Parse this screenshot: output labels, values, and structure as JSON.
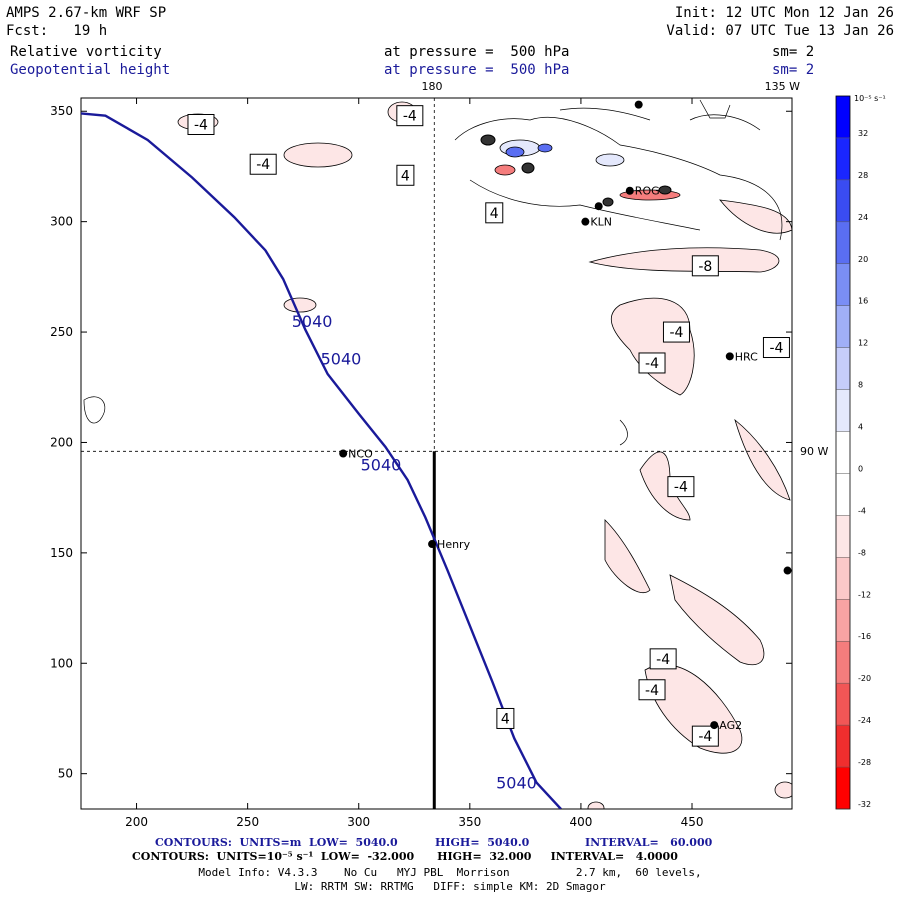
{
  "header": {
    "model": "AMPS 2.67-km WRF SP",
    "fcst": "Fcst:   19 h",
    "init": "Init: 12 UTC Mon 12 Jan 26",
    "valid": "Valid: 07 UTC Tue 13 Jan 26",
    "field1_name": "Relative vorticity",
    "field1_pressure": "at pressure =  500 hPa",
    "field1_sm": "sm= 2",
    "field2_name": "Geopotential height",
    "field2_pressure": "at pressure =  500 hPa",
    "field2_sm": "sm= 2"
  },
  "map_labels": {
    "lon180": "180",
    "lon135w": "135 W",
    "lon90w": "90 W"
  },
  "stations": [
    {
      "name": "NCO",
      "x": 293,
      "y": 195
    },
    {
      "name": "Henry",
      "x": 333,
      "y": 154
    },
    {
      "name": "ROG",
      "x": 422,
      "y": 314
    },
    {
      "name": "KLN",
      "x": 402,
      "y": 300
    },
    {
      "name": "HRC",
      "x": 467,
      "y": 239
    },
    {
      "name": "AG2",
      "x": 460,
      "y": 72
    },
    {
      "name": "",
      "x": 493,
      "y": 142
    },
    {
      "name": "",
      "x": 426,
      "y": 353
    },
    {
      "name": "",
      "x": 408,
      "y": 307
    }
  ],
  "chart_data": {
    "type": "contour",
    "xlim": [
      175,
      495
    ],
    "ylim": [
      34,
      356
    ],
    "x_ticks": [
      200,
      250,
      300,
      350,
      400,
      450
    ],
    "y_ticks": [
      50,
      100,
      150,
      200,
      250,
      300,
      350
    ],
    "grid": false,
    "crosshair": {
      "x": 334,
      "y": 196
    },
    "geopotential_contour": {
      "value": "5040",
      "labels": [
        "5040",
        "5040",
        "5040",
        "5040"
      ],
      "points": [
        [
          175,
          349
        ],
        [
          186,
          348
        ],
        [
          205,
          337
        ],
        [
          225,
          320
        ],
        [
          244,
          302
        ],
        [
          258,
          287
        ],
        [
          266,
          274
        ],
        [
          276,
          251
        ],
        [
          286,
          231
        ],
        [
          300,
          213
        ],
        [
          312,
          198
        ],
        [
          322,
          183
        ],
        [
          330,
          166
        ],
        [
          340,
          142
        ],
        [
          350,
          117
        ],
        [
          360,
          92
        ],
        [
          370,
          66
        ],
        [
          380,
          46
        ],
        [
          391,
          34
        ]
      ]
    },
    "vorticity_labels": [
      {
        "text": "-4",
        "x": 229,
        "y": 344
      },
      {
        "text": "-4",
        "x": 257,
        "y": 326
      },
      {
        "text": "-4",
        "x": 323,
        "y": 348
      },
      {
        "text": "4",
        "x": 321,
        "y": 321
      },
      {
        "text": "4",
        "x": 361,
        "y": 304
      },
      {
        "text": "-8",
        "x": 456,
        "y": 280
      },
      {
        "text": "-4",
        "x": 443,
        "y": 250
      },
      {
        "text": "-4",
        "x": 432,
        "y": 236
      },
      {
        "text": "-4",
        "x": 488,
        "y": 243
      },
      {
        "text": "-4",
        "x": 445,
        "y": 180
      },
      {
        "text": "-4",
        "x": 437,
        "y": 102
      },
      {
        "text": "-4",
        "x": 432,
        "y": 88
      },
      {
        "text": "-4",
        "x": 456,
        "y": 67
      },
      {
        "text": "4",
        "x": 366,
        "y": 75
      }
    ],
    "colorbar": {
      "units": "10⁻⁵ s⁻¹",
      "ticks": [
        32,
        28,
        24,
        20,
        16,
        12,
        8,
        4,
        0,
        -4,
        -8,
        -12,
        -16,
        -20,
        -24,
        -28,
        -32
      ],
      "colors": [
        "#0000ff",
        "#1a26ff",
        "#3a4cf2",
        "#5a6ef2",
        "#7a8ef5",
        "#a0aff7",
        "#c6cdfa",
        "#e4e8fc",
        "#ffffff",
        "#ffffff",
        "#fde6e6",
        "#fbc8c8",
        "#f8a3a3",
        "#f57d7d",
        "#f25656",
        "#f02e2e",
        "#ff0000"
      ]
    }
  },
  "footer": {
    "contours1_a": "CONTOURS:  UNITS=m  LOW=  5040.0",
    "contours1_b": "HIGH=  5040.0",
    "contours1_c": "INTERVAL=   60.000",
    "contours2": "CONTOURS:  UNITS=10⁻⁵ s⁻¹  LOW=  -32.000      HIGH=  32.000     INTERVAL=   4.0000",
    "model_info": "Model Info: V4.3.3    No Cu   MYJ PBL  Morrison          2.7 km,  60 levels,",
    "model_info2": "LW: RRTM SW: RRTMG   DIFF: simple KM: 2D Smagor"
  }
}
